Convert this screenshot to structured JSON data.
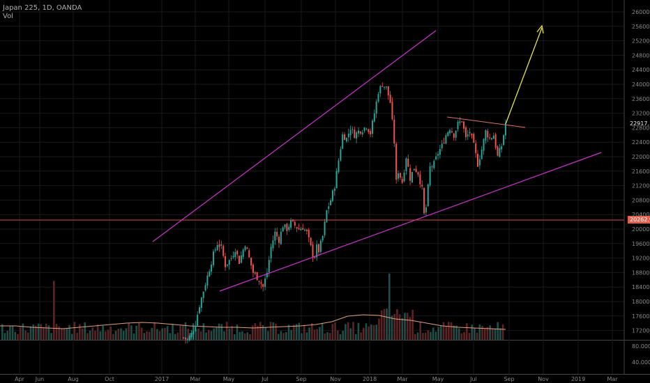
{
  "header": {
    "symbol_line": "Japan 225, 1D, OANDA",
    "vol_label": "Vol"
  },
  "price_labels": {
    "last": "22917.1",
    "support": "20262.9"
  },
  "colors": {
    "background": "#000000",
    "up": "#26a69a",
    "down": "#ef5350",
    "channel": "#cc33cc",
    "arrow": "#e6e645",
    "resistance": "#d9736a",
    "support_line": "#d94b4b",
    "vol_ma": "#e0a080",
    "grid": "#1a1a1a",
    "axis_text": "#8a8a8a"
  },
  "chart_data": {
    "type": "candlestick",
    "title": "Japan 225, 1D, OANDA",
    "y_ticks": [
      "26000.0",
      "25600.0",
      "25200.0",
      "24800.0",
      "24400.0",
      "24000.0",
      "23600.0",
      "23200.0",
      "22800.0",
      "22400.0",
      "22000.0",
      "21600.0",
      "21200.0",
      "20800.0",
      "20400.0",
      "20000.0",
      "19600.0",
      "19200.0",
      "18800.0",
      "18400.0",
      "18000.0",
      "17600.0",
      "17200.0"
    ],
    "vol_ticks": [
      "80.0000",
      "40.0000"
    ],
    "x_ticks": [
      "Apr",
      "Jun",
      "Aug",
      "Oct",
      "2017",
      "Mar",
      "May",
      "Jul",
      "Sep",
      "Nov",
      "2018",
      "Mar",
      "May",
      "Jul",
      "Sep",
      "Nov",
      "2019",
      "Mar"
    ],
    "ylim": [
      16900,
      26200
    ],
    "price_path": [
      [
        0,
        17100
      ],
      [
        32,
        17000
      ],
      [
        34,
        16950
      ],
      [
        36,
        17100
      ],
      [
        38,
        17400
      ],
      [
        40,
        17900
      ],
      [
        42,
        18300
      ],
      [
        45,
        18900
      ],
      [
        47,
        19300
      ],
      [
        49,
        19600
      ],
      [
        51,
        19500
      ],
      [
        53,
        19000
      ],
      [
        56,
        19200
      ],
      [
        58,
        19450
      ],
      [
        60,
        19100
      ],
      [
        63,
        19600
      ],
      [
        65,
        19200
      ],
      [
        67,
        18800
      ],
      [
        70,
        18600
      ],
      [
        72,
        18400
      ],
      [
        74,
        18800
      ],
      [
        76,
        19500
      ],
      [
        78,
        19900
      ],
      [
        80,
        19700
      ],
      [
        82,
        20100
      ],
      [
        84,
        20000
      ],
      [
        86,
        20200
      ],
      [
        88,
        20100
      ],
      [
        90,
        20000
      ],
      [
        92,
        20050
      ],
      [
        94,
        19900
      ],
      [
        96,
        19500
      ],
      [
        97,
        19300
      ],
      [
        98,
        19250
      ],
      [
        99,
        19500
      ],
      [
        100,
        19400
      ],
      [
        102,
        19800
      ],
      [
        104,
        20500
      ],
      [
        106,
        20800
      ],
      [
        108,
        21200
      ],
      [
        110,
        21900
      ],
      [
        112,
        22600
      ],
      [
        114,
        22500
      ],
      [
        116,
        22800
      ],
      [
        118,
        22600
      ],
      [
        120,
        22700
      ],
      [
        122,
        22750
      ],
      [
        124,
        22850
      ],
      [
        126,
        22650
      ],
      [
        128,
        23200
      ],
      [
        130,
        23800
      ],
      [
        132,
        24000
      ],
      [
        134,
        23900
      ],
      [
        136,
        23500
      ],
      [
        138,
        22400
      ],
      [
        139,
        21300
      ],
      [
        140,
        21600
      ],
      [
        142,
        21300
      ],
      [
        144,
        22000
      ],
      [
        146,
        21400
      ],
      [
        148,
        21700
      ],
      [
        150,
        21550
      ],
      [
        152,
        21100
      ],
      [
        153,
        20400
      ],
      [
        154,
        20600
      ],
      [
        156,
        21700
      ],
      [
        158,
        21800
      ],
      [
        160,
        22100
      ],
      [
        162,
        22300
      ],
      [
        164,
        22600
      ],
      [
        166,
        22800
      ],
      [
        168,
        22600
      ],
      [
        170,
        22900
      ],
      [
        172,
        23000
      ],
      [
        174,
        22500
      ],
      [
        176,
        22700
      ],
      [
        178,
        22300
      ],
      [
        180,
        21800
      ],
      [
        182,
        22200
      ],
      [
        184,
        22700
      ],
      [
        186,
        22500
      ],
      [
        188,
        22600
      ],
      [
        190,
        22000
      ],
      [
        192,
        22300
      ],
      [
        194,
        22917.1
      ]
    ],
    "volume": {
      "ma_path": [
        20,
        20,
        18,
        17,
        16,
        18,
        20,
        22,
        24,
        25,
        24,
        22,
        20,
        19,
        18,
        18,
        17,
        18,
        19,
        20,
        22,
        26,
        34,
        36,
        35,
        30,
        28,
        24,
        20,
        18,
        17,
        16,
        15
      ]
    }
  }
}
